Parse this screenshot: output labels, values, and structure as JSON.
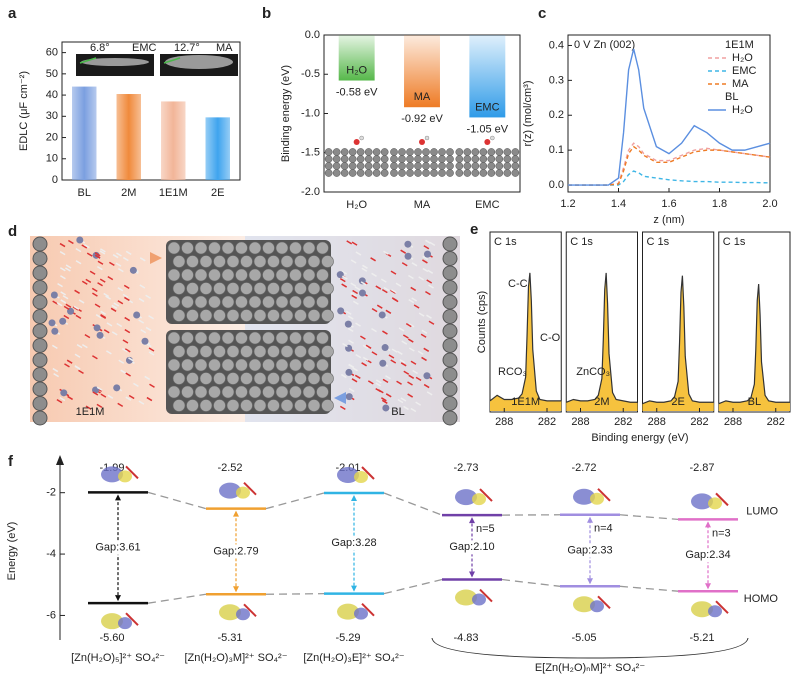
{
  "chart_data": [
    {
      "type": "bar",
      "panel": "a",
      "ylabel": "EDLC (μF cm⁻²)",
      "categories": [
        "BL",
        "2M",
        "1E1M",
        "2E"
      ],
      "values": [
        44,
        40.5,
        37,
        29.5
      ],
      "colors": [
        "#7b9fe0",
        "#f08a3c",
        "#f2b598",
        "#3fa4ee"
      ],
      "ylim": [
        0,
        65
      ],
      "yticks": [
        0,
        10,
        20,
        30,
        40,
        50,
        60
      ],
      "insets": [
        {
          "angle": "6.8°",
          "name": "EMC"
        },
        {
          "angle": "12.7°",
          "name": "MA"
        }
      ]
    },
    {
      "type": "bar",
      "panel": "b",
      "ylabel": "Binding energy (eV)",
      "categories": [
        "H₂O",
        "MA",
        "EMC"
      ],
      "values": [
        -0.58,
        -0.92,
        -1.05
      ],
      "value_labels": [
        "-0.58 eV",
        "-0.92 eV",
        "-1.05 eV"
      ],
      "labels_in_bars": true,
      "colors": [
        "#56b84a",
        "#ee7b25",
        "#2f9be8"
      ],
      "ylim": [
        -2,
        0
      ],
      "yticks": [
        {
          "value": 0,
          "label": "0.0"
        },
        -0.5,
        {
          "value": -1,
          "label": "-1.0"
        },
        -1.5,
        {
          "value": -2,
          "label": "-2.0"
        }
      ]
    },
    {
      "type": "line",
      "panel": "c",
      "annotation": "0 V Zn (002)",
      "xlabel": "z (nm)",
      "ylabel": "r(z) (mol/cm³)",
      "x": [
        1.2,
        1.3,
        1.36,
        1.4,
        1.42,
        1.44,
        1.46,
        1.48,
        1.5,
        1.55,
        1.6,
        1.65,
        1.7,
        1.75,
        1.8,
        1.85,
        1.9,
        1.95,
        2.0
      ],
      "groups": [
        {
          "name": "1E1M",
          "series": [
            {
              "name": "H₂O",
              "color": "#f0a0a0",
              "values": [
                0,
                0,
                0,
                0.005,
                0.05,
                0.1,
                0.12,
                0.11,
                0.09,
                0.07,
                0.07,
                0.085,
                0.1,
                0.105,
                0.1,
                0.095,
                0.09,
                0.085,
                0.08
              ]
            },
            {
              "name": "EMC",
              "color": "#3fb6e6",
              "values": [
                0,
                0,
                0,
                0,
                0.01,
                0.03,
                0.04,
                0.035,
                0.025,
                0.02,
                0.015,
                0.012,
                0.01,
                0.01,
                0.008,
                0.008,
                0.007,
                0.007,
                0.006
              ]
            },
            {
              "name": "MA",
              "color": "#ee7b25",
              "values": [
                0,
                0,
                0,
                0.003,
                0.04,
                0.09,
                0.11,
                0.1,
                0.085,
                0.065,
                0.065,
                0.08,
                0.095,
                0.1,
                0.1,
                0.095,
                0.09,
                0.085,
                0.08
              ]
            }
          ]
        },
        {
          "name": "BL",
          "series": [
            {
              "name": "H₂O",
              "color": "#5b8fe0",
              "values": [
                0,
                0,
                0,
                0.02,
                0.15,
                0.33,
                0.39,
                0.33,
                0.22,
                0.11,
                0.09,
                0.12,
                0.17,
                0.15,
                0.12,
                0.1,
                0.1,
                0.11,
                0.12
              ]
            }
          ]
        }
      ],
      "xlim": [
        1.2,
        2
      ],
      "xticks": [
        1.2,
        1.4,
        1.6,
        1.8,
        {
          "value": 2,
          "label": "2.0"
        }
      ],
      "ylim": [
        -0.02,
        0.43
      ],
      "yticks": [
        {
          "value": 0,
          "label": "0.0"
        },
        0.1,
        0.2,
        0.3,
        0.4
      ]
    },
    {
      "type": "xps",
      "panel": "e",
      "xlabel": "Binding energy (eV)",
      "ylabel": "Counts (cps)",
      "x": [
        290,
        289,
        288,
        287,
        286,
        285.5,
        285,
        284.8,
        284.6,
        284.4,
        284.2,
        284,
        283.5,
        283,
        282,
        281,
        280
      ],
      "xlim": [
        290,
        280
      ],
      "xticks": [
        288,
        282
      ],
      "ylim": [
        0,
        115
      ],
      "panels": [
        {
          "title": "C 1s",
          "name": "1E1M",
          "color": "#2f7fd0",
          "annotations": [
            "C-C",
            "C-O",
            "RCO₃"
          ],
          "values": [
            8,
            12,
            9,
            9,
            10,
            13,
            25,
            55,
            90,
            100,
            80,
            45,
            15,
            9,
            8,
            8,
            8
          ]
        },
        {
          "title": "C 1s",
          "name": "2M",
          "color": "#ee7b25",
          "annotations": [
            "ZnCO₃"
          ],
          "values": [
            7,
            9,
            8,
            8,
            9,
            12,
            24,
            52,
            88,
            100,
            78,
            42,
            14,
            9,
            8,
            7,
            7
          ]
        },
        {
          "title": "C 1s",
          "name": "2E",
          "color": "#2f7fd0",
          "annotations": [],
          "values": [
            6,
            8,
            7,
            7,
            8,
            11,
            22,
            50,
            86,
            98,
            76,
            40,
            13,
            8,
            7,
            7,
            7
          ]
        },
        {
          "title": "C 1s",
          "name": "BL",
          "color": "#222222",
          "annotations": [],
          "values": [
            6,
            8,
            7,
            7,
            8,
            10,
            20,
            45,
            80,
            92,
            70,
            36,
            12,
            8,
            7,
            7,
            7
          ]
        }
      ]
    },
    {
      "type": "energy_levels",
      "panel": "f",
      "ylabel": "Energy (eV)",
      "categories": [
        "[Zn(H₂O)₅]²⁺ SO₄²⁻",
        "[Zn(H₂O)₃M]²⁺ SO₄²⁻",
        "[Zn(H₂O)₃E]²⁺ SO₄²⁻",
        null,
        null,
        null
      ],
      "group_label": "E[Zn(H₂O)ₙM]²⁺ SO₄²⁻",
      "colors": [
        "#111111",
        "#f0a030",
        "#30b4e4",
        "#7040a8",
        "#a08ee0",
        "#e070c8"
      ],
      "series": [
        {
          "name": "LUMO",
          "values": [
            -1.99,
            -2.52,
            -2.01,
            -2.73,
            -2.72,
            -2.87
          ],
          "value_labels": [
            "-1.99",
            "-2.52",
            "-2.01",
            "-2.73",
            "-2.72",
            "-2.87"
          ]
        },
        {
          "name": "HOMO",
          "values": [
            -5.6,
            -5.31,
            -5.29,
            -4.83,
            -5.05,
            -5.21
          ],
          "value_labels": [
            "-5.60",
            "-5.31",
            "-5.29",
            "-4.83",
            "-5.05",
            "-5.21"
          ]
        }
      ],
      "gaps": [
        3.61,
        2.79,
        3.28,
        2.1,
        2.33,
        2.34
      ],
      "gap_labels": [
        "Gap:3.61",
        "Gap:2.79",
        "Gap:3.28",
        "Gap:2.10",
        "Gap:2.33",
        "Gap:2.34"
      ],
      "n_labels": [
        null,
        null,
        null,
        "n=5",
        "n=4",
        "n=3"
      ],
      "ylim": [
        -6.8,
        -1.0
      ],
      "yticks": [
        -2,
        -4,
        -6
      ]
    }
  ],
  "figure_d": {
    "panel": "d",
    "labels": [
      "1E1M",
      "BL"
    ]
  }
}
